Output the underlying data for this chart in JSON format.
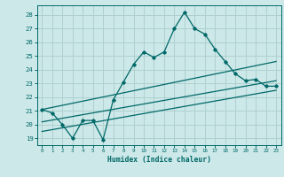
{
  "xlabel": "Humidex (Indice chaleur)",
  "ylabel": "",
  "background_color": "#cce8e8",
  "grid_color": "#b0d0d0",
  "line_color": "#006868",
  "xlim": [
    -0.5,
    23.5
  ],
  "ylim": [
    18.5,
    28.7
  ],
  "yticks": [
    19,
    20,
    21,
    22,
    23,
    24,
    25,
    26,
    27,
    28
  ],
  "xticks": [
    0,
    1,
    2,
    3,
    4,
    5,
    6,
    7,
    8,
    9,
    10,
    11,
    12,
    13,
    14,
    15,
    16,
    17,
    18,
    19,
    20,
    21,
    22,
    23
  ],
  "main_line_x": [
    0,
    1,
    2,
    3,
    4,
    5,
    6,
    7,
    8,
    9,
    10,
    11,
    12,
    13,
    14,
    15,
    16,
    17,
    18,
    19,
    20,
    21,
    22,
    23
  ],
  "main_line_y": [
    21.1,
    20.85,
    20.0,
    19.0,
    20.3,
    20.3,
    18.9,
    21.8,
    23.1,
    24.4,
    25.3,
    24.9,
    25.3,
    27.0,
    28.2,
    27.0,
    26.6,
    25.5,
    24.6,
    23.7,
    23.2,
    23.3,
    22.8,
    22.8
  ],
  "line2_x": [
    0,
    23
  ],
  "line2_y": [
    21.1,
    24.6
  ],
  "line3_x": [
    0,
    23
  ],
  "line3_y": [
    20.2,
    23.2
  ],
  "line4_x": [
    0,
    23
  ],
  "line4_y": [
    19.5,
    22.5
  ]
}
